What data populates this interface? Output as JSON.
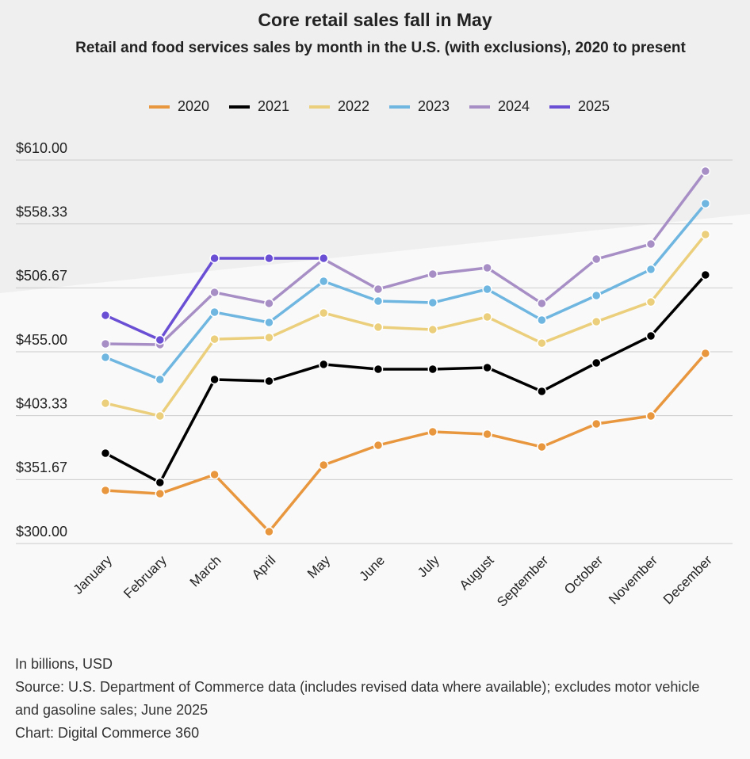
{
  "chart_data": {
    "type": "line",
    "title": "Core retail sales fall in May",
    "subtitle": "Retail and food services sales by month in the U.S. (with exclusions), 2020 to present",
    "categories": [
      "January",
      "February",
      "March",
      "April",
      "May",
      "June",
      "July",
      "August",
      "September",
      "October",
      "November",
      "December"
    ],
    "series": [
      {
        "name": "2020",
        "color": "#e8973f",
        "values": [
          342.9,
          340.3,
          355.7,
          309.6,
          363.4,
          379.4,
          390.3,
          388.4,
          378.1,
          396.7,
          403.1,
          453.7
        ]
      },
      {
        "name": "2021",
        "color": "#000000",
        "values": [
          373.0,
          349.3,
          432.6,
          431.3,
          444.8,
          440.9,
          440.9,
          442.2,
          423.0,
          446.0,
          467.8,
          517.1
        ]
      },
      {
        "name": "2022",
        "color": "#ebcf7c",
        "values": [
          413.4,
          403.1,
          465.2,
          466.5,
          486.4,
          474.9,
          472.9,
          483.2,
          462.0,
          479.3,
          495.3,
          549.8
        ]
      },
      {
        "name": "2023",
        "color": "#6fb6e0",
        "values": [
          450.5,
          432.6,
          487.0,
          478.7,
          512.0,
          496.0,
          494.7,
          505.6,
          480.6,
          500.5,
          521.6,
          574.8
        ]
      },
      {
        "name": "2024",
        "color": "#a78fc6",
        "values": [
          461.4,
          460.8,
          503.0,
          494.1,
          529.9,
          505.6,
          517.8,
          522.9,
          494.1,
          529.9,
          542.1,
          601.0
        ]
      },
      {
        "name": "2025",
        "color": "#6a4fd4",
        "values": [
          484.5,
          464.6,
          530.6,
          530.6,
          530.6,
          null,
          null,
          null,
          null,
          null,
          null,
          null
        ]
      }
    ],
    "ylim": [
      300,
      610
    ],
    "yticks": [
      {
        "value": 300,
        "label": "$300.00"
      },
      {
        "value": 351.67,
        "label": "$351.67"
      },
      {
        "value": 403.33,
        "label": "$403.33"
      },
      {
        "value": 455,
        "label": "$455.00"
      },
      {
        "value": 506.67,
        "label": "$506.67"
      },
      {
        "value": 558.33,
        "label": "$558.33"
      },
      {
        "value": 610,
        "label": "$610.00"
      }
    ],
    "grid": true,
    "legend": "top",
    "notes": [
      "In billions, USD",
      "Source: U.S. Department of Commerce data (includes revised data where available); excludes motor vehicle and gasoline sales; June 2025",
      "Chart: Digital Commerce 360"
    ]
  }
}
